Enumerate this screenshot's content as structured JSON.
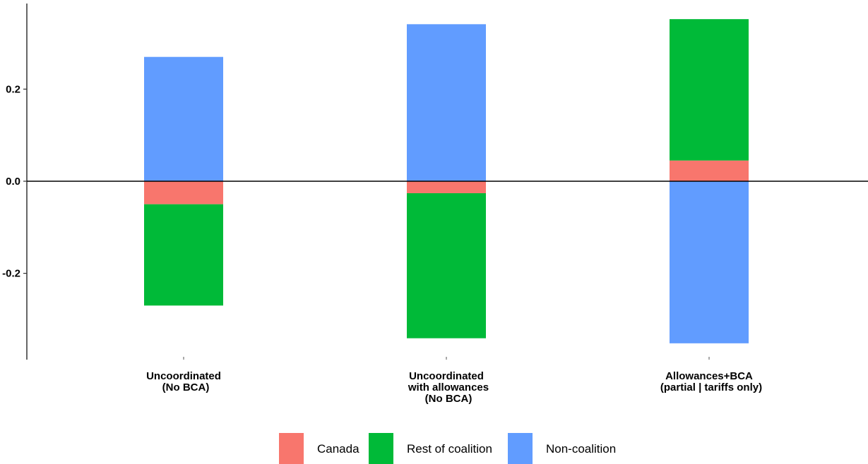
{
  "chart_data": {
    "type": "bar",
    "stacked": true,
    "title": "",
    "xlabel": "",
    "ylabel": "",
    "ylim": [
      -0.38,
      0.38
    ],
    "yticks": [
      -0.2,
      0.0,
      0.2
    ],
    "ytick_labels": [
      "-0.2",
      "0.0",
      "0.2"
    ],
    "zero_line": true,
    "grid": false,
    "legend_position": "bottom",
    "categories": [
      {
        "lines": [
          "Uncoordinated",
          "(No BCA)"
        ]
      },
      {
        "lines": [
          "Uncoordinated",
          "with allowances",
          "(No BCA)"
        ]
      },
      {
        "lines": [
          "Allowances+BCA",
          "(partial | tariffs only)"
        ]
      }
    ],
    "series": [
      {
        "name": "Canada",
        "color": "#F8766D",
        "values": [
          -0.05,
          -0.026,
          0.045
        ]
      },
      {
        "name": "Rest of coalition",
        "color": "#00BA38",
        "values": [
          -0.22,
          -0.315,
          0.307
        ]
      },
      {
        "name": "Non-coalition",
        "color": "#619CFF",
        "values": [
          0.27,
          0.341,
          -0.352
        ]
      }
    ]
  }
}
